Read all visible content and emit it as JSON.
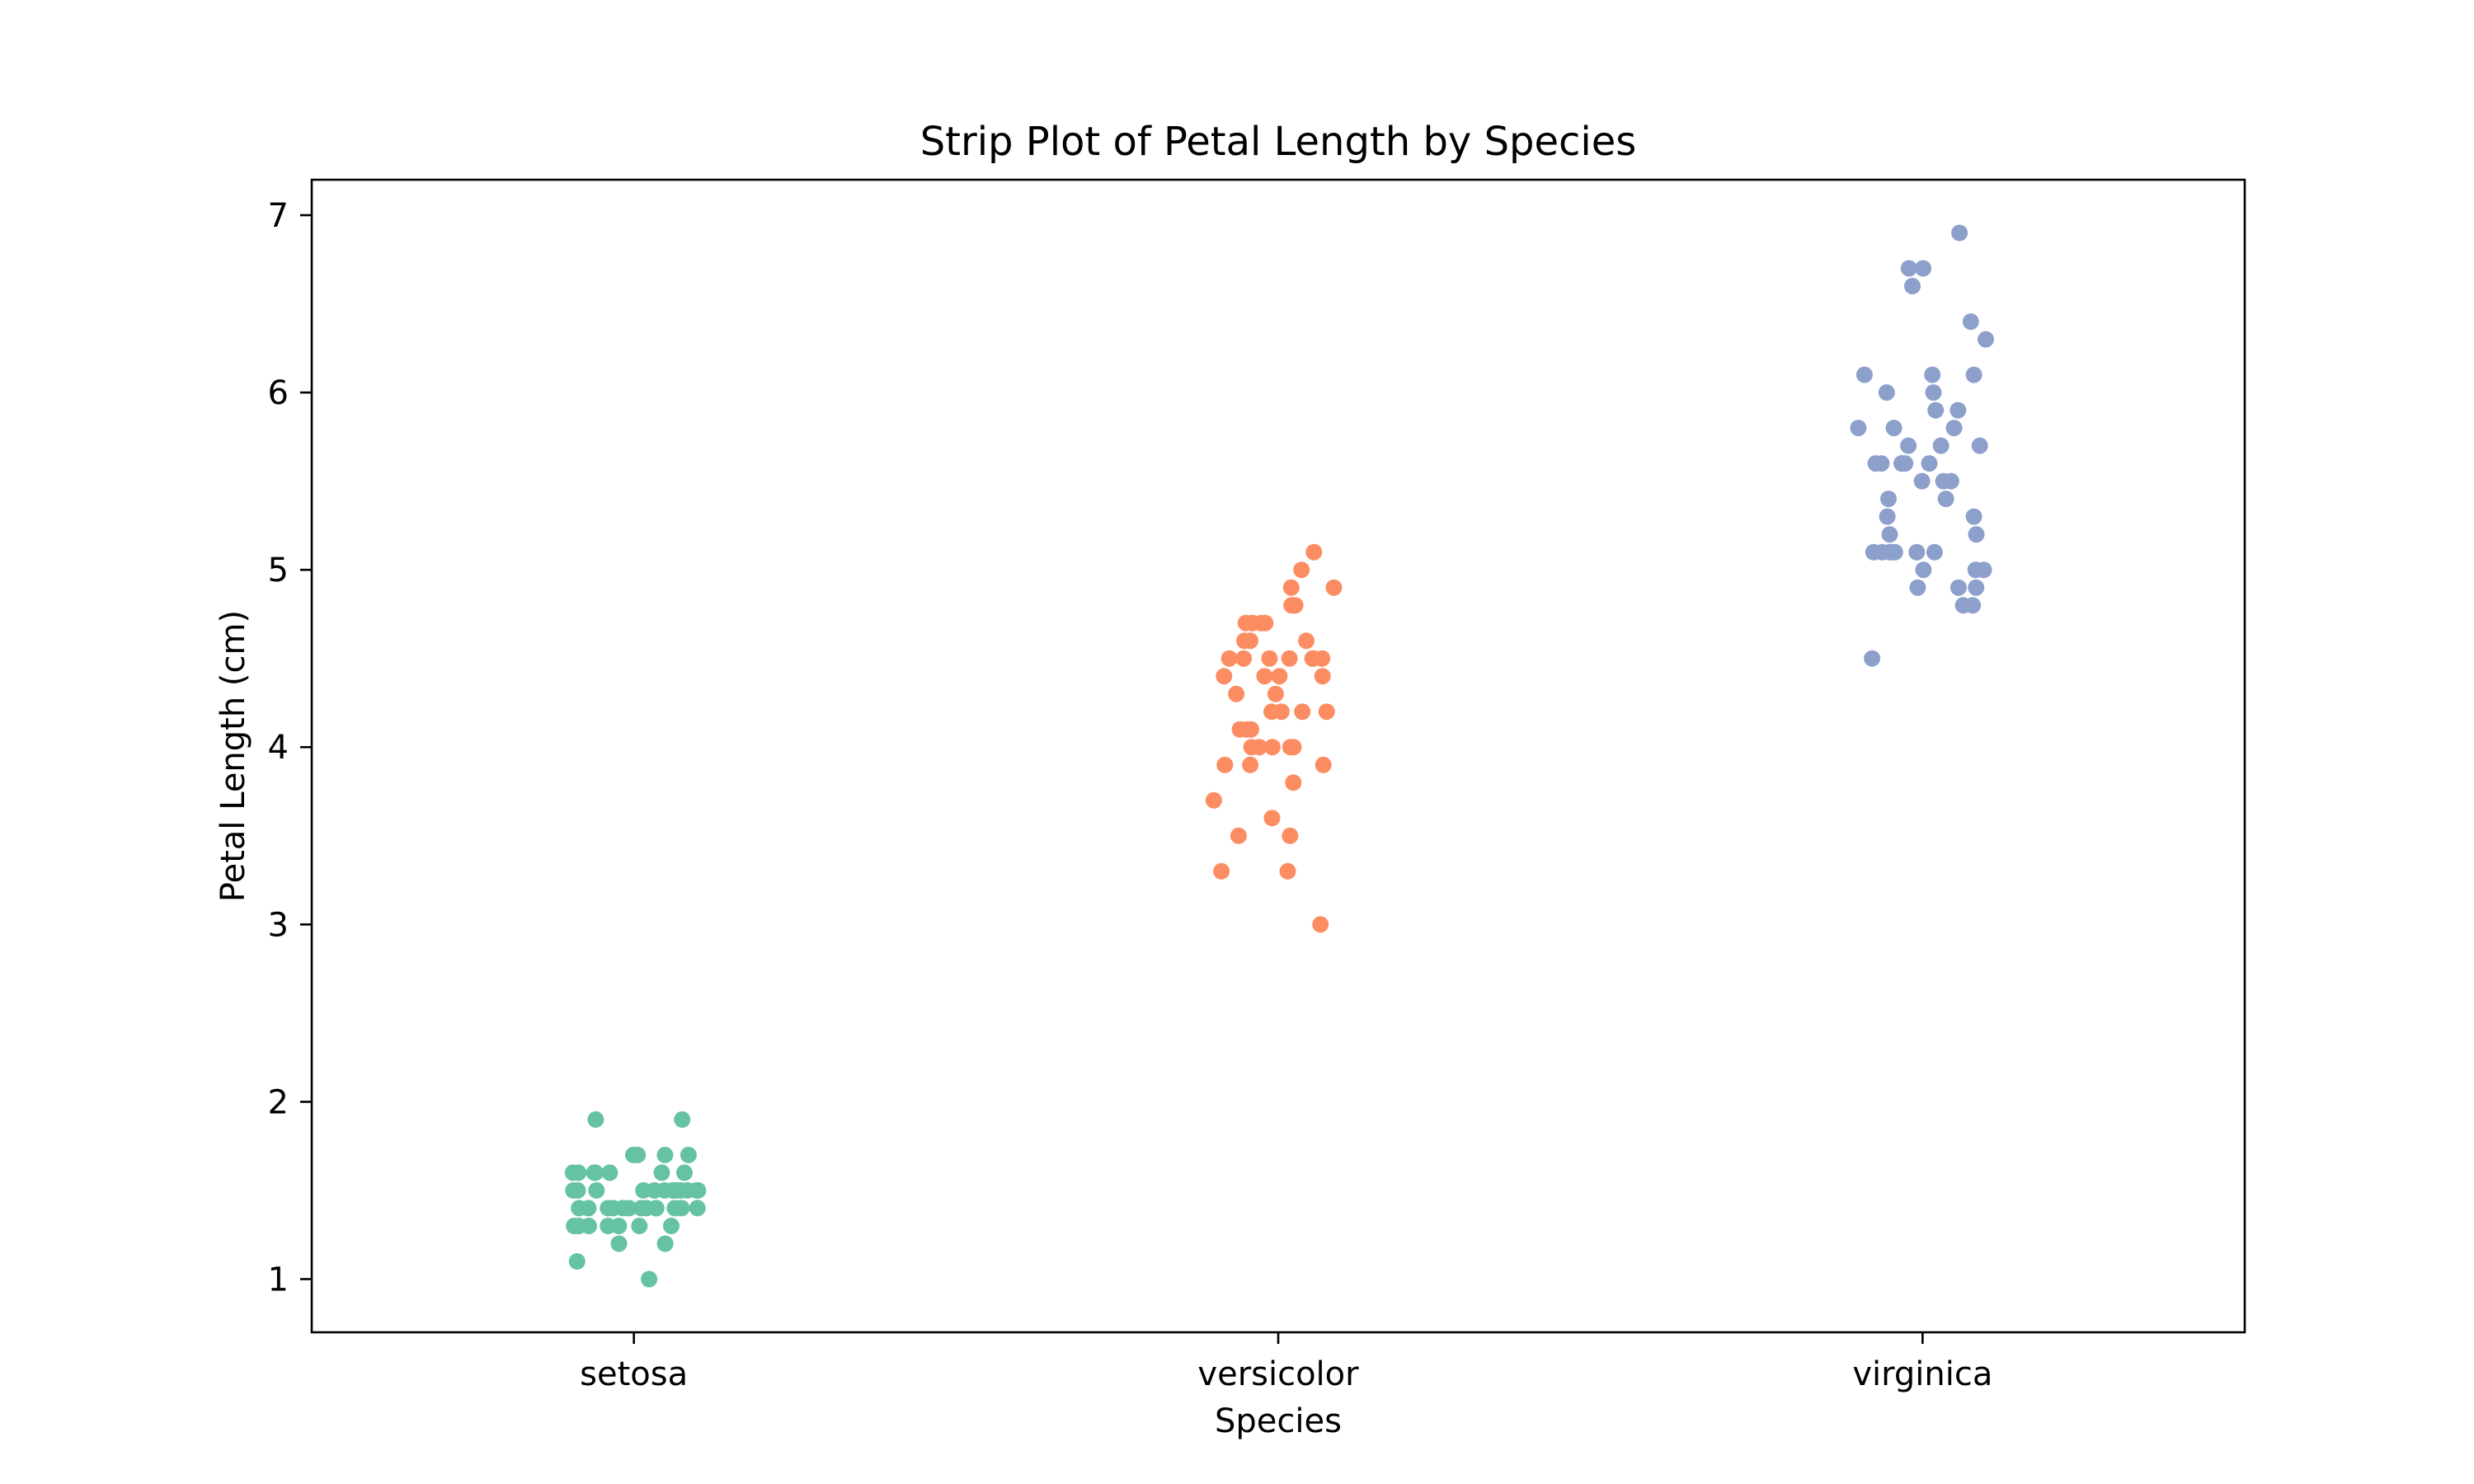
{
  "chart_data": {
    "type": "scatter",
    "subtype": "strip",
    "title": "Strip Plot of Petal Length by Species",
    "xlabel": "Species",
    "ylabel": "Petal Length (cm)",
    "categories": [
      "setosa",
      "versicolor",
      "virginica"
    ],
    "ylim": [
      0.7,
      7.2
    ],
    "yticks": [
      "1",
      "2",
      "3",
      "4",
      "5",
      "6",
      "7"
    ],
    "grid": false,
    "legend": "none",
    "series": [
      {
        "category": "setosa",
        "color": "#66c2a5",
        "values": [
          1.4,
          1.4,
          1.3,
          1.5,
          1.4,
          1.7,
          1.4,
          1.5,
          1.4,
          1.5,
          1.5,
          1.6,
          1.4,
          1.1,
          1.2,
          1.5,
          1.3,
          1.4,
          1.7,
          1.5,
          1.7,
          1.5,
          1.0,
          1.7,
          1.9,
          1.6,
          1.6,
          1.5,
          1.4,
          1.6,
          1.6,
          1.5,
          1.5,
          1.4,
          1.5,
          1.2,
          1.3,
          1.4,
          1.3,
          1.5,
          1.3,
          1.3,
          1.3,
          1.6,
          1.9,
          1.4,
          1.6,
          1.4,
          1.5,
          1.4
        ]
      },
      {
        "category": "versicolor",
        "color": "#fc8d62",
        "values": [
          4.7,
          4.5,
          4.9,
          4.0,
          4.6,
          4.5,
          4.7,
          3.3,
          4.6,
          3.9,
          3.5,
          4.2,
          4.0,
          4.7,
          3.6,
          4.4,
          4.5,
          4.1,
          4.5,
          3.9,
          4.8,
          4.0,
          4.9,
          4.7,
          4.3,
          4.4,
          4.8,
          5.0,
          4.5,
          3.5,
          3.8,
          3.7,
          3.9,
          5.1,
          4.5,
          4.5,
          4.7,
          4.4,
          4.1,
          4.0,
          4.4,
          4.6,
          4.0,
          3.3,
          4.2,
          4.2,
          4.2,
          4.3,
          3.0,
          4.1
        ]
      },
      {
        "category": "virginica",
        "color": "#8da0cb",
        "values": [
          6.0,
          5.1,
          5.9,
          5.6,
          5.8,
          6.6,
          4.5,
          6.3,
          5.8,
          6.1,
          5.1,
          5.3,
          5.5,
          5.0,
          5.1,
          5.3,
          5.5,
          6.7,
          6.9,
          5.0,
          5.7,
          4.9,
          6.7,
          4.9,
          5.7,
          6.0,
          4.8,
          4.9,
          5.6,
          5.8,
          6.1,
          6.4,
          5.6,
          5.1,
          5.6,
          6.1,
          5.6,
          5.5,
          4.8,
          5.4,
          5.6,
          5.1,
          5.1,
          5.9,
          5.7,
          5.2,
          5.0,
          5.2,
          5.4,
          5.1
        ]
      }
    ]
  }
}
